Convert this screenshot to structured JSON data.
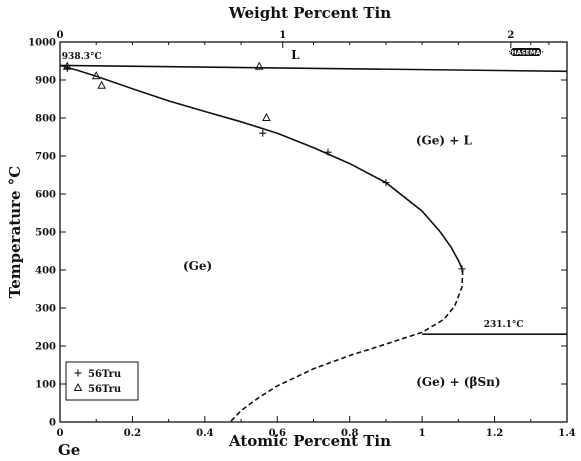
{
  "chart_data": {
    "type": "phase-diagram",
    "title": "Weight Percent Tin",
    "xlabel": "Atomic Percent Tin",
    "ylabel": "Temperature °C",
    "xlim": [
      0,
      1.4
    ],
    "ylim": [
      0,
      1000
    ],
    "x_ticks": [
      0,
      0.2,
      0.4,
      0.6,
      0.8,
      1,
      1.2,
      1.4
    ],
    "x_tick_labels": [
      "0",
      "0.2",
      "0.4",
      "0.6",
      "0.8",
      "1",
      "1.2",
      "1.4"
    ],
    "y_ticks": [
      0,
      100,
      200,
      300,
      400,
      500,
      600,
      700,
      800,
      900,
      1000
    ],
    "y_tick_labels": [
      "0",
      "100",
      "200",
      "300",
      "400",
      "500",
      "600",
      "700",
      "800",
      "900",
      "1000"
    ],
    "top_axis_ticks": [
      0,
      1,
      2
    ],
    "top_axis_tick_labels": [
      "0",
      "1",
      "2"
    ],
    "top_axis_positions_atomic": [
      0,
      0.615,
      1.245
    ],
    "x_start_label": "Ge",
    "regions": [
      {
        "label": "L",
        "x": 0.65,
        "y": 955
      },
      {
        "label": "(Ge) + L",
        "x": 1.06,
        "y": 730
      },
      {
        "label": "(Ge)",
        "x": 0.38,
        "y": 400
      },
      {
        "label": "(Ge) + (βSn)",
        "x": 1.1,
        "y": 95
      }
    ],
    "annotations": [
      {
        "label": "938.3°C",
        "x": 0.005,
        "y": 955
      },
      {
        "label": "231.1°C",
        "x": 1.17,
        "y": 250
      }
    ],
    "curves": [
      {
        "name": "liquidus",
        "style": "solid",
        "x": [
          0,
          1.4
        ],
        "y": [
          938.3,
          923
        ]
      },
      {
        "name": "solidus",
        "style": "solid",
        "x": [
          0,
          0.05,
          0.1,
          0.2,
          0.3,
          0.4,
          0.5,
          0.6,
          0.7,
          0.8,
          0.9,
          1.0,
          1.05,
          1.08,
          1.1,
          1.112
        ],
        "y": [
          938.3,
          925,
          910,
          877,
          845,
          817,
          790,
          760,
          722,
          680,
          630,
          555,
          500,
          460,
          425,
          400
        ]
      },
      {
        "name": "solvus",
        "style": "dashed",
        "x": [
          1.112,
          1.11,
          1.09,
          1.06,
          1.0
        ],
        "y": [
          400,
          355,
          305,
          270,
          236
        ]
      },
      {
        "name": "solvus-low",
        "style": "dashed",
        "x": [
          1.0,
          0.9,
          0.8,
          0.7,
          0.6,
          0.55,
          0.5,
          0.47
        ],
        "y": [
          236,
          205,
          175,
          140,
          95,
          65,
          30,
          0
        ]
      },
      {
        "name": "eutectic",
        "style": "solid",
        "x": [
          1.0,
          1.4
        ],
        "y": [
          231.1,
          231.1
        ]
      }
    ],
    "series": [
      {
        "name": "56Tru",
        "marker": "plus",
        "x": [
          0.02,
          0.56,
          0.74,
          0.9,
          1.11
        ],
        "y": [
          930,
          760,
          710,
          630,
          403
        ]
      },
      {
        "name": "56Tru",
        "marker": "triangle",
        "x": [
          0.02,
          0.1,
          0.115,
          0.55,
          0.57
        ],
        "y": [
          935,
          910,
          885,
          935,
          800
        ]
      }
    ],
    "legend": {
      "position": "bottom-left",
      "entries": [
        "56Tru",
        "56Tru"
      ]
    },
    "grid": false
  },
  "logo": {
    "text": "PHASEMAP"
  }
}
